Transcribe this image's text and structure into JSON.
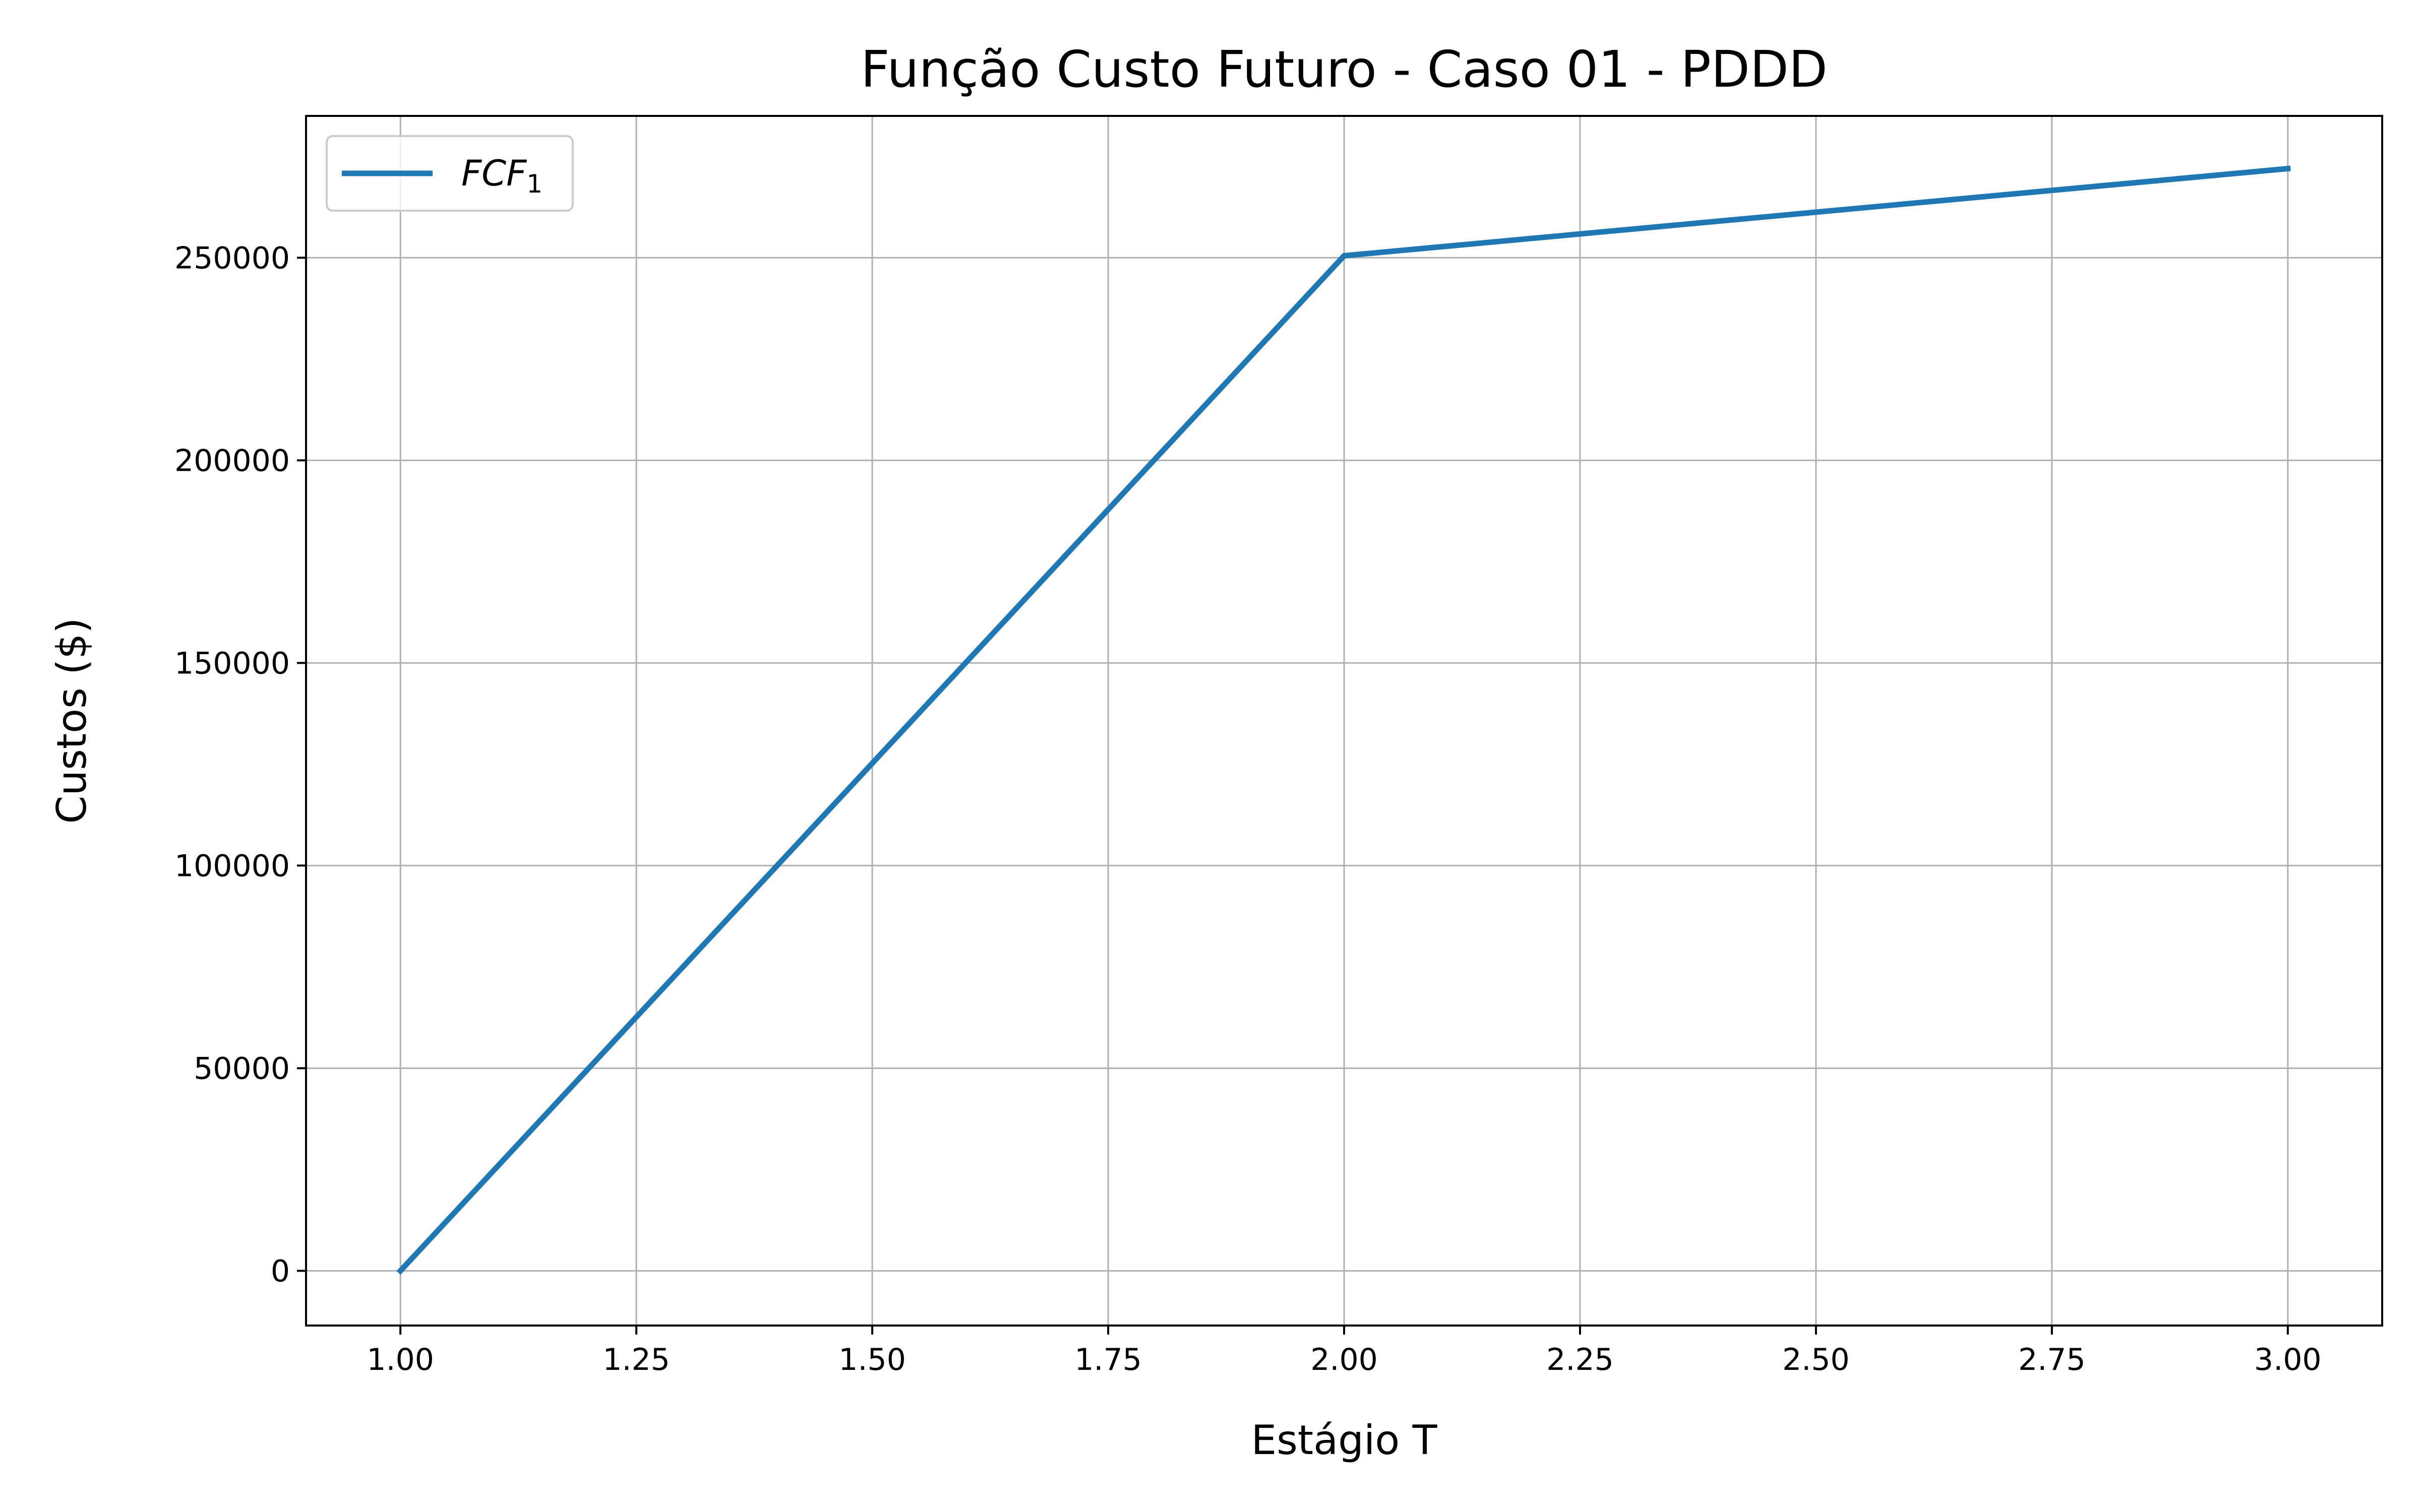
{
  "chart_data": {
    "type": "line",
    "title": "Função Custo Futuro - Caso 01 - PDDD",
    "xlabel": "Estágio T",
    "ylabel": "Custos ($)",
    "xlim": [
      0.9,
      3.1
    ],
    "ylim": [
      -13500,
      285000
    ],
    "x_ticks": [
      1.0,
      1.25,
      1.5,
      1.75,
      2.0,
      2.25,
      2.5,
      2.75,
      3.0
    ],
    "x_tick_labels": [
      "1.00",
      "1.25",
      "1.50",
      "1.75",
      "2.00",
      "2.25",
      "2.50",
      "2.75",
      "3.00"
    ],
    "y_ticks": [
      0,
      50000,
      100000,
      150000,
      200000,
      250000
    ],
    "y_tick_labels": [
      "0",
      "50000",
      "100000",
      "150000",
      "200000",
      "250000"
    ],
    "grid": true,
    "legend_position": "top-left",
    "legend": {
      "base": "FCF",
      "subscript": "1"
    },
    "series": [
      {
        "name": "FCF1",
        "color": "#1f77b4",
        "x": [
          1.0,
          2.0,
          3.0
        ],
        "y": [
          0,
          250500,
          272000
        ]
      }
    ]
  }
}
